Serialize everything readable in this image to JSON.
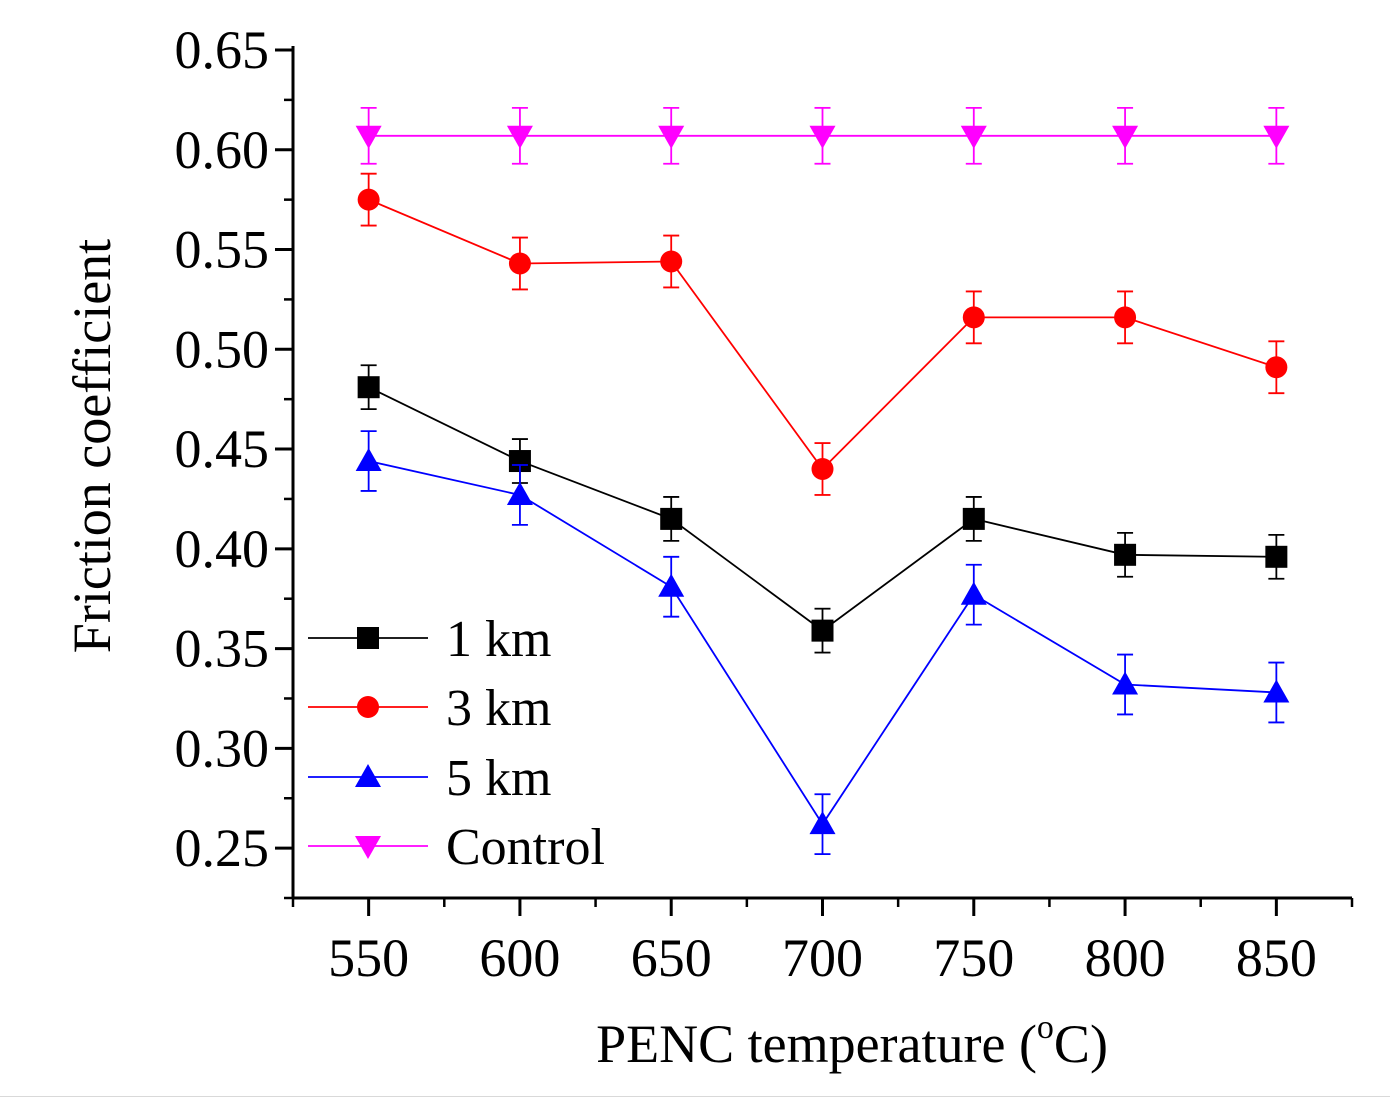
{
  "chart_data": {
    "type": "line",
    "title": "",
    "xlabel": "PENC temperature (",
    "xlabel_superscript": "o",
    "xlabel_suffix": "C)",
    "ylabel": "Friction coefficient",
    "x": [
      550,
      600,
      650,
      700,
      750,
      800,
      850
    ],
    "x_tick_labels": [
      "550",
      "600",
      "650",
      "700",
      "750",
      "800",
      "850"
    ],
    "xlim": [
      525,
      875
    ],
    "ylim": [
      0.225,
      0.65
    ],
    "y_ticks": [
      0.25,
      0.3,
      0.35,
      0.4,
      0.45,
      0.5,
      0.55,
      0.6,
      0.65
    ],
    "y_tick_labels": [
      "0.25",
      "0.30",
      "0.35",
      "0.40",
      "0.45",
      "0.50",
      "0.55",
      "0.60",
      "0.65"
    ],
    "grid": false,
    "legend_position": "bottom-left",
    "series": [
      {
        "name": "1 km",
        "color": "#000000",
        "marker": "square",
        "values": [
          0.481,
          0.444,
          0.415,
          0.359,
          0.415,
          0.397,
          0.396
        ],
        "errors": [
          0.011,
          0.011,
          0.011,
          0.011,
          0.011,
          0.011,
          0.011
        ]
      },
      {
        "name": "3 km",
        "color": "#ff0000",
        "marker": "circle",
        "values": [
          0.575,
          0.543,
          0.544,
          0.44,
          0.516,
          0.516,
          0.491
        ],
        "errors": [
          0.013,
          0.013,
          0.013,
          0.013,
          0.013,
          0.013,
          0.013
        ]
      },
      {
        "name": "5 km",
        "color": "#0000ff",
        "marker": "triangle-up",
        "values": [
          0.444,
          0.427,
          0.381,
          0.262,
          0.377,
          0.332,
          0.328
        ],
        "errors": [
          0.015,
          0.015,
          0.015,
          0.015,
          0.015,
          0.015,
          0.015
        ]
      },
      {
        "name": "Control",
        "color": "#ff00ff",
        "marker": "triangle-down",
        "values": [
          0.607,
          0.607,
          0.607,
          0.607,
          0.607,
          0.607,
          0.607
        ],
        "errors": [
          0.014,
          0.014,
          0.014,
          0.014,
          0.014,
          0.014,
          0.014
        ]
      }
    ]
  }
}
